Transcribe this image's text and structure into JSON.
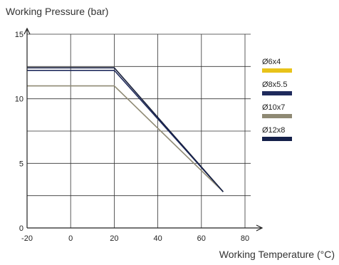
{
  "chart_data": {
    "type": "line",
    "xlabel": "Working Temperature (°C)",
    "ylabel": "Working Pressure (bar)",
    "xlim": [
      -20,
      80
    ],
    "ylim": [
      0,
      15
    ],
    "x_ticks": [
      "-20",
      "0",
      "20",
      "40",
      "60",
      "80"
    ],
    "y_ticks": [
      "0",
      "5",
      "10",
      "15"
    ],
    "grid": true,
    "legend_position": "right",
    "series": [
      {
        "name": "Ø6x4",
        "color": "#e8c31a",
        "x": [
          -20,
          20,
          70
        ],
        "y": [
          12.4,
          12.4,
          2.8
        ]
      },
      {
        "name": "Ø8x5.5",
        "color": "#1f2a5c",
        "x": [
          -20,
          20,
          70
        ],
        "y": [
          12.2,
          12.2,
          2.8
        ]
      },
      {
        "name": "Ø10x7",
        "color": "#8f8a74",
        "x": [
          -20,
          20,
          70
        ],
        "y": [
          11.0,
          11.0,
          2.8
        ]
      },
      {
        "name": "Ø12x8",
        "color": "#15204a",
        "x": [
          -20,
          20,
          70
        ],
        "y": [
          12.4,
          12.4,
          2.8
        ]
      }
    ]
  }
}
